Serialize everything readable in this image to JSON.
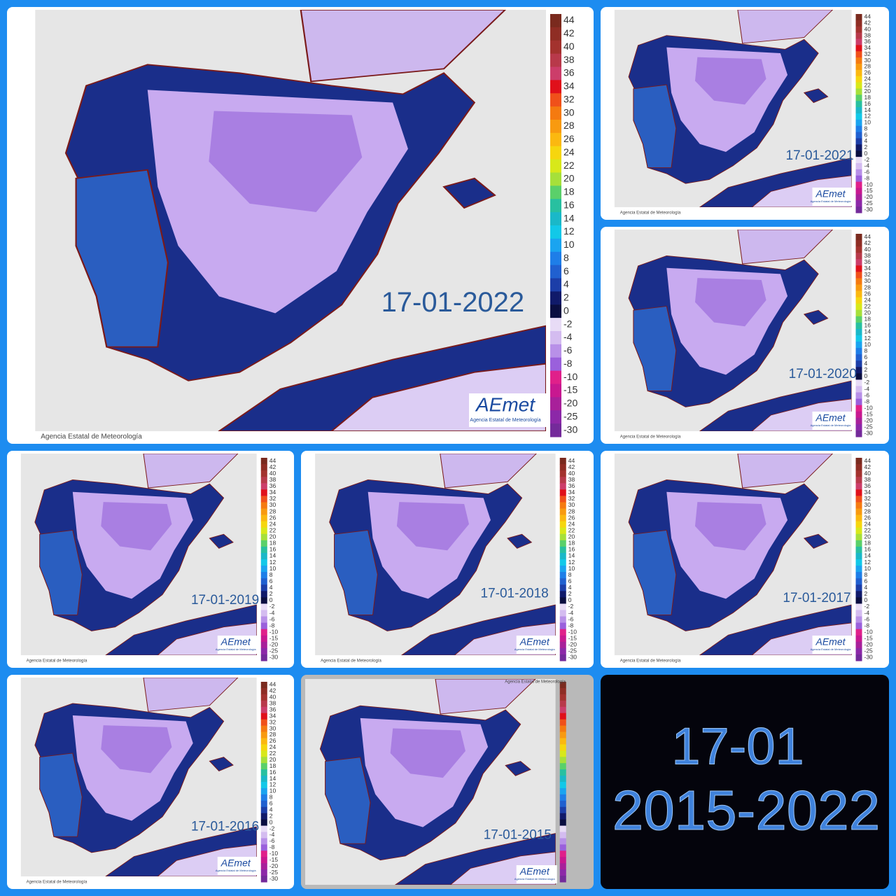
{
  "panels": [
    {
      "date": "17-01-2022"
    },
    {
      "date": "17-01-2021"
    },
    {
      "date": "17-01-2020"
    },
    {
      "date": "17-01-2019"
    },
    {
      "date": "17-01-2018"
    },
    {
      "date": "17-01-2017"
    },
    {
      "date": "17-01-2016"
    },
    {
      "date": "17-01-2015"
    }
  ],
  "legend": {
    "ticks": [
      44,
      42,
      40,
      38,
      36,
      34,
      32,
      30,
      28,
      26,
      24,
      22,
      20,
      18,
      16,
      14,
      12,
      10,
      8,
      6,
      4,
      2,
      0,
      -2,
      -4,
      -6,
      -8,
      -10,
      -15,
      -20,
      -25,
      -30
    ],
    "colors": [
      "#7a2a1e",
      "#8f2d24",
      "#a3322e",
      "#b8394a",
      "#cc3d6a",
      "#e0101a",
      "#f0501a",
      "#f57a10",
      "#f89a10",
      "#fbb810",
      "#f6d60e",
      "#d8e81a",
      "#a6e03a",
      "#5ad06a",
      "#28c0a0",
      "#1ab8c8",
      "#12c8e8",
      "#1aa4f0",
      "#1e7ee8",
      "#2060d0",
      "#1c3ea8",
      "#101a6a",
      "#0a0e40",
      "#e8dcf6",
      "#d4bcf0",
      "#b890e8",
      "#9a60dc",
      "#e0208a",
      "#c81890",
      "#a8209a",
      "#8c28a8",
      "#742a9a"
    ]
  },
  "copyright": "Agencia Estatal de Meteorología",
  "logo": "AEmet",
  "summary": {
    "day": "17-01",
    "years": "2015-2022"
  }
}
